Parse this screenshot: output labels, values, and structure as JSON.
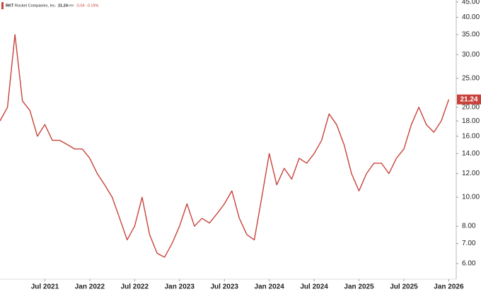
{
  "chart_data": {
    "type": "line",
    "header": {
      "symbol": "RKT",
      "name": "Rocket Companies, Inc.",
      "currency": "USD",
      "change": -0.04,
      "change_pct": "-0.19%"
    },
    "x": [
      "2021-01",
      "2021-02",
      "2021-03",
      "2021-04",
      "2021-05",
      "2021-06",
      "2021-07",
      "2021-08",
      "2021-09",
      "2021-10",
      "2021-11",
      "2021-12",
      "2022-01",
      "2022-02",
      "2022-03",
      "2022-04",
      "2022-05",
      "2022-06",
      "2022-07",
      "2022-08",
      "2022-09",
      "2022-10",
      "2022-11",
      "2022-12",
      "2023-01",
      "2023-02",
      "2023-03",
      "2023-04",
      "2023-05",
      "2023-06",
      "2023-07",
      "2023-08",
      "2023-09",
      "2023-10",
      "2023-11",
      "2023-12",
      "2024-01",
      "2024-02",
      "2024-03",
      "2024-04",
      "2024-05",
      "2024-06",
      "2024-07",
      "2024-08",
      "2024-09",
      "2024-10",
      "2024-11",
      "2024-12",
      "2025-01",
      "2025-02",
      "2025-03",
      "2025-04",
      "2025-05",
      "2025-06",
      "2025-07",
      "2025-08",
      "2025-09",
      "2025-10",
      "2025-11",
      "2025-12",
      "2026-01"
    ],
    "series": [
      {
        "name": "RKT",
        "color": "#c8423b",
        "values": [
          18,
          20,
          35,
          21,
          19.5,
          16,
          17.5,
          15.5,
          15.5,
          15,
          14.5,
          14.5,
          13.5,
          12,
          11,
          10,
          8.5,
          7.2,
          8,
          10,
          7.5,
          6.5,
          6.3,
          7,
          8,
          9.5,
          8,
          8.5,
          8.2,
          8.8,
          9.5,
          10.5,
          8.5,
          7.5,
          7.2,
          10,
          14,
          11,
          12.5,
          11.5,
          13.5,
          13,
          14,
          15.5,
          19,
          17.5,
          15,
          12,
          10.5,
          12,
          13,
          13,
          12,
          13.5,
          14.5,
          17.5,
          20,
          17.5,
          16.5,
          18,
          21.24
        ]
      }
    ],
    "xlim": [
      "2021-01",
      "2026-02"
    ],
    "xticks": [
      {
        "value": "2021-07",
        "label": "Jul 2021"
      },
      {
        "value": "2022-01",
        "label": "Jan 2022"
      },
      {
        "value": "2022-07",
        "label": "Jul 2022"
      },
      {
        "value": "2023-01",
        "label": "Jan 2023"
      },
      {
        "value": "2023-07",
        "label": "Jul 2023"
      },
      {
        "value": "2024-01",
        "label": "Jan 2024"
      },
      {
        "value": "2024-07",
        "label": "Jul 2024"
      },
      {
        "value": "2025-01",
        "label": "Jan 2025"
      },
      {
        "value": "2025-07",
        "label": "Jul 2025"
      },
      {
        "value": "2026-01",
        "label": "Jan 2026"
      }
    ],
    "ylim": [
      5.32,
      45.7
    ],
    "yscale": "log",
    "yticks": [
      {
        "value": 45,
        "label": "45.00"
      },
      {
        "value": 40,
        "label": "40.00"
      },
      {
        "value": 35,
        "label": "35.00"
      },
      {
        "value": 30,
        "label": "30.00"
      },
      {
        "value": 25,
        "label": "25.00"
      },
      {
        "value": 20,
        "label": "20.00"
      },
      {
        "value": 18,
        "label": "18.00"
      },
      {
        "value": 16,
        "label": "16.00"
      },
      {
        "value": 14,
        "label": "14.00"
      },
      {
        "value": 12,
        "label": "12.00"
      },
      {
        "value": 10,
        "label": "10.00"
      },
      {
        "value": 8,
        "label": "8.00"
      },
      {
        "value": 7,
        "label": "7.00"
      },
      {
        "value": 6,
        "label": "6.00"
      }
    ]
  }
}
